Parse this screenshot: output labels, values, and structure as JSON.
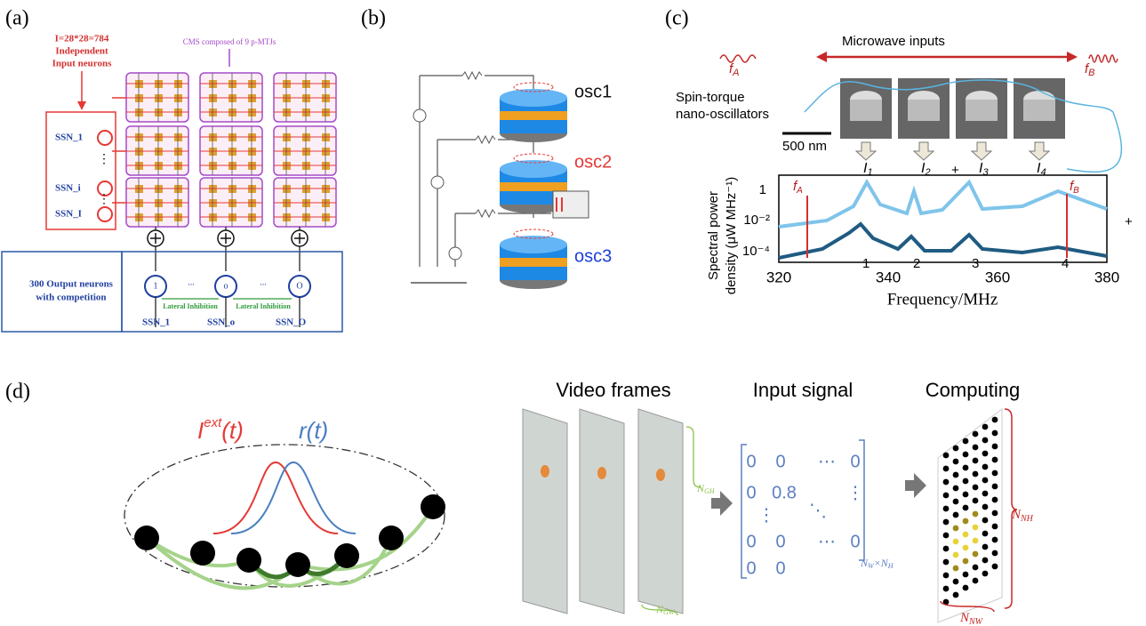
{
  "panel_a": {
    "label": "(a)",
    "input_count": "I=28*28=784",
    "input_title": [
      "Independent",
      "Input neurons"
    ],
    "cms_note": "CMS composed of  9 p-MTJs",
    "input_neurons": [
      "SSN_1",
      "SSN_i",
      "SSN_I"
    ],
    "output_title": [
      "300 Output neurons",
      "with competition"
    ],
    "inhibition": [
      "Lateral Inhibition",
      "Lateral Inhibition"
    ],
    "output_neurons": [
      "SSN_1",
      "SSN_o",
      "SSN_O"
    ],
    "output_nodes": [
      "1",
      "o",
      "O"
    ],
    "ellipsis": "..."
  },
  "panel_b": {
    "label": "(b)",
    "oscillators": [
      "osc1",
      "osc2",
      "osc3"
    ]
  },
  "panel_c": {
    "label": "(c)",
    "microwave": "Microwave inputs",
    "fA": [
      "f",
      "A"
    ],
    "fB": [
      "f",
      "B"
    ],
    "device": [
      "Spin-torque",
      "nano-oscillators"
    ],
    "scale_bar": "500 nm",
    "currents": [
      [
        "I",
        "1"
      ],
      [
        "I",
        "2"
      ],
      [
        "I",
        "3"
      ],
      [
        "I",
        "4"
      ]
    ],
    "plus": "+",
    "ylabel": [
      "Spectral power",
      "density (μW MHz⁻¹)"
    ],
    "yticks": [
      "1",
      "10⁻²",
      "10⁻⁴"
    ],
    "xticks": [
      "320",
      "340",
      "360",
      "380"
    ],
    "xlabel": "Frequency/MHz",
    "peaks": [
      "1",
      "2",
      "3",
      "4"
    ]
  },
  "panel_d": {
    "label": "(d)",
    "iext": [
      "I",
      "ext",
      "(t)"
    ],
    "rate": "r(t)",
    "headers": [
      "Video frames",
      "Input signal",
      "Computing"
    ],
    "ngh": [
      "N",
      "GH"
    ],
    "ngw": [
      "N",
      "GW"
    ],
    "matrix": [
      "0",
      "0.8",
      "⋯",
      "⋮",
      "⋱"
    ],
    "size": [
      "N",
      "W",
      "×N",
      "H"
    ],
    "nnh": [
      "N",
      "NH"
    ],
    "nnw": [
      "N",
      "NW"
    ]
  }
}
